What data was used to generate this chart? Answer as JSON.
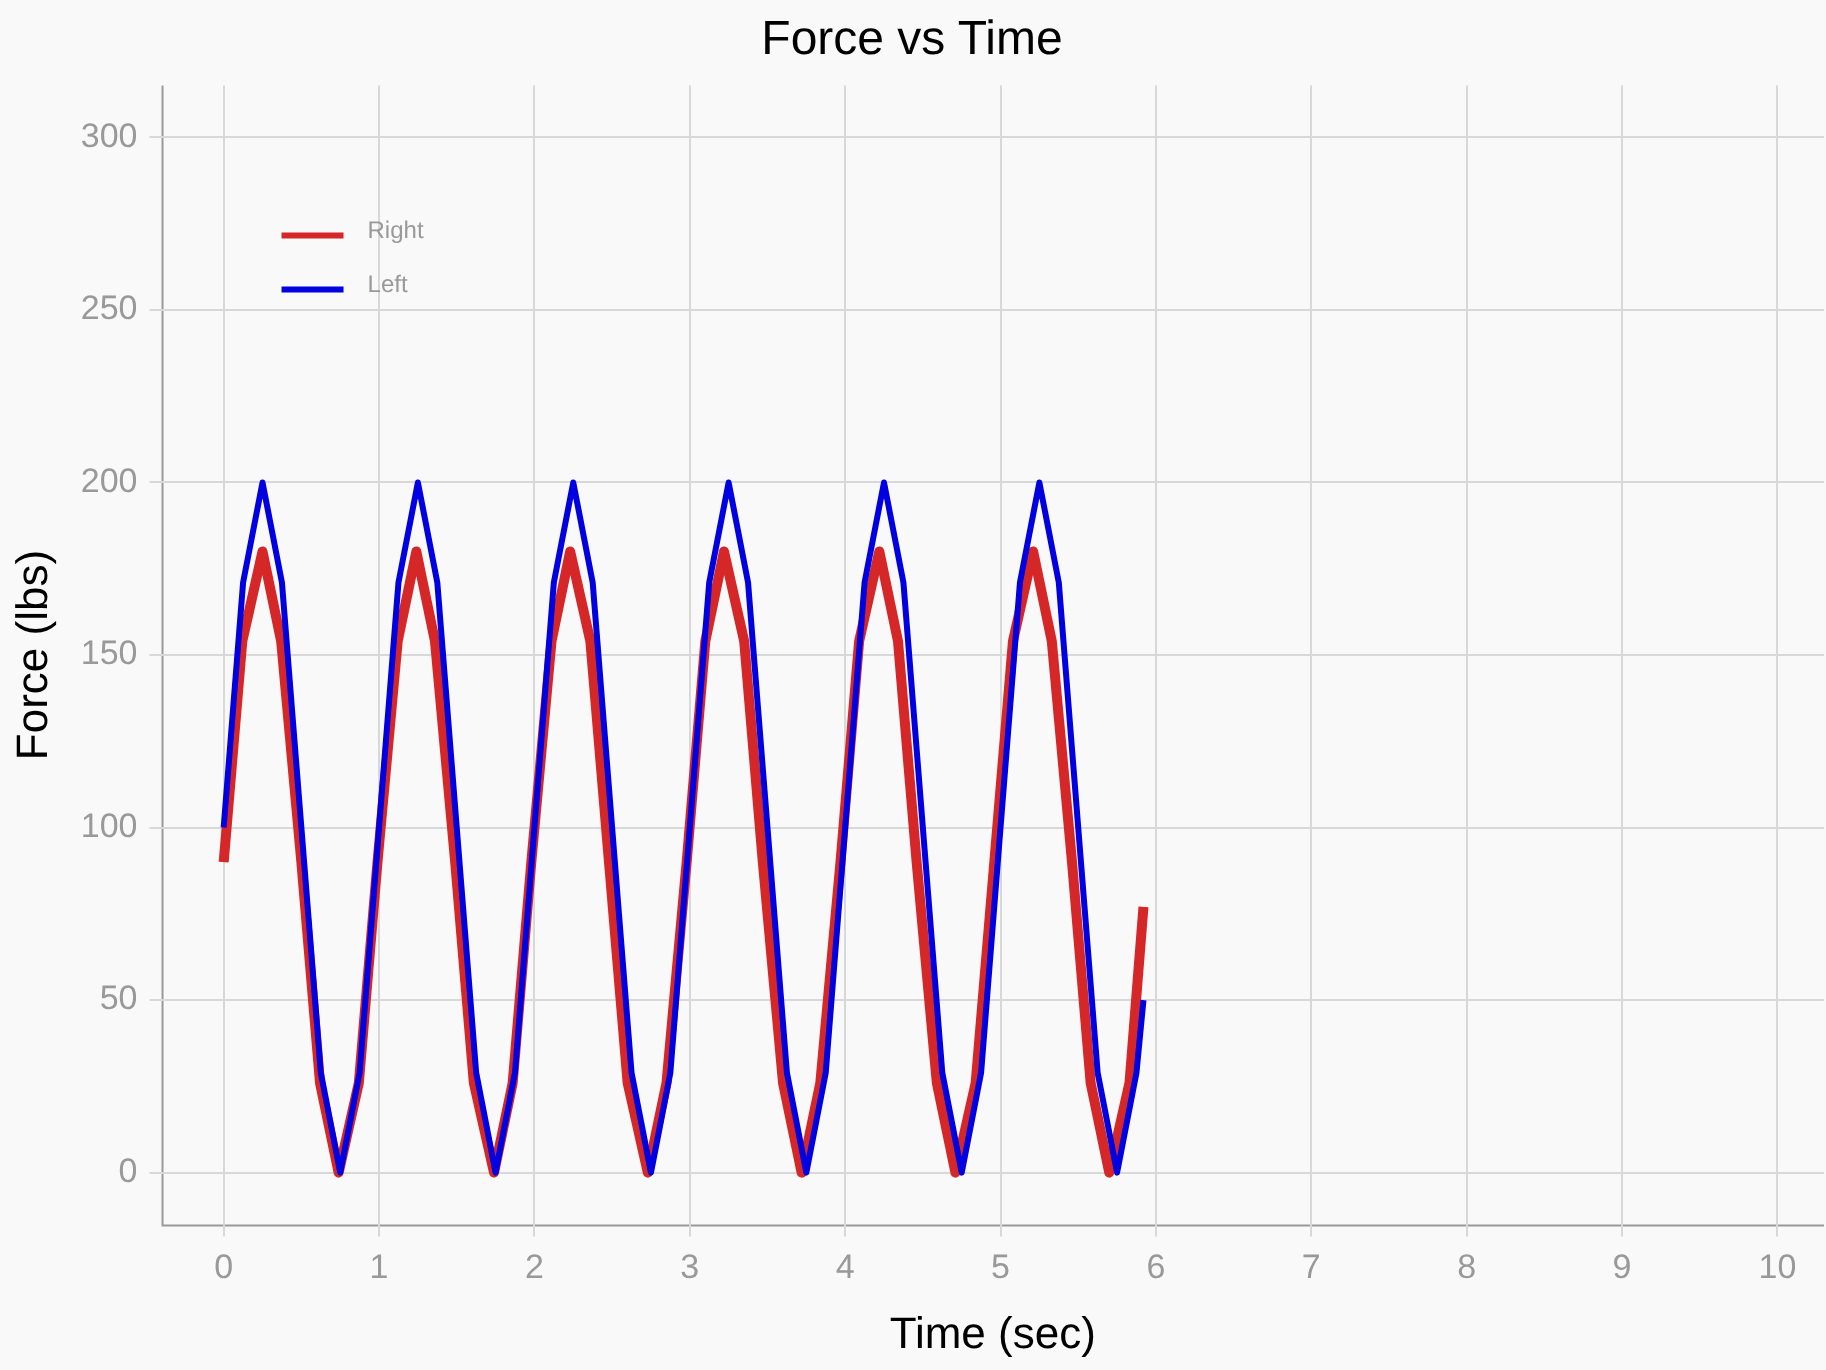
{
  "chart_data": {
    "type": "line",
    "title": "Force vs Time",
    "xlabel": "Time (sec)",
    "ylabel": "Force (lbs)",
    "xlim": [
      -0.4,
      10.3
    ],
    "ylim": [
      -15,
      315
    ],
    "xticks": [
      0,
      1,
      2,
      3,
      4,
      5,
      6,
      7,
      8,
      9,
      10
    ],
    "yticks": [
      0,
      50,
      100,
      150,
      200,
      250,
      300
    ],
    "grid": true,
    "legend": "top left",
    "marker": "none",
    "line_style": "solid",
    "series": [
      {
        "name": "Right",
        "color": "#d62728",
        "x": [
          0,
          0.12,
          0.25,
          0.37,
          0.5,
          0.62,
          0.74,
          0.87,
          0.99,
          1.12,
          1.24,
          1.36,
          1.49,
          1.61,
          1.74,
          1.86,
          1.98,
          2.11,
          2.23,
          2.36,
          2.48,
          2.6,
          2.73,
          2.85,
          2.98,
          3.1,
          3.22,
          3.35,
          3.47,
          3.6,
          3.72,
          3.84,
          3.97,
          4.09,
          4.22,
          4.34,
          4.46,
          4.59,
          4.71,
          4.84,
          4.96,
          5.08,
          5.21,
          5.33,
          5.46,
          5.58,
          5.7,
          5.83,
          5.92
        ],
        "values": [
          90,
          154,
          180,
          154,
          90,
          26,
          0,
          26,
          90,
          154,
          180,
          154,
          90,
          26,
          0,
          26,
          90,
          154,
          180,
          154,
          90,
          26,
          0,
          26,
          90,
          154,
          180,
          154,
          90,
          26,
          0,
          26,
          90,
          154,
          180,
          154,
          90,
          26,
          0,
          26,
          90,
          154,
          180,
          154,
          90,
          26,
          0,
          26,
          77
        ]
      },
      {
        "name": "Left",
        "color": "#0000e0",
        "x": [
          0,
          0.125,
          0.25,
          0.375,
          0.5,
          0.625,
          0.75,
          0.875,
          1,
          1.125,
          1.25,
          1.375,
          1.5,
          1.625,
          1.75,
          1.875,
          2,
          2.125,
          2.25,
          2.375,
          2.5,
          2.625,
          2.75,
          2.875,
          3,
          3.125,
          3.25,
          3.375,
          3.5,
          3.625,
          3.75,
          3.875,
          4,
          4.125,
          4.25,
          4.375,
          4.5,
          4.625,
          4.75,
          4.875,
          5,
          5.125,
          5.25,
          5.375,
          5.5,
          5.625,
          5.75,
          5.875,
          5.92
        ],
        "values": [
          100,
          171,
          200,
          171,
          100,
          29,
          0,
          29,
          100,
          171,
          200,
          171,
          100,
          29,
          0,
          29,
          100,
          171,
          200,
          171,
          100,
          29,
          0,
          29,
          100,
          171,
          200,
          171,
          100,
          29,
          0,
          29,
          100,
          171,
          200,
          171,
          100,
          29,
          0,
          29,
          100,
          171,
          200,
          171,
          100,
          29,
          0,
          29,
          50
        ]
      }
    ]
  }
}
